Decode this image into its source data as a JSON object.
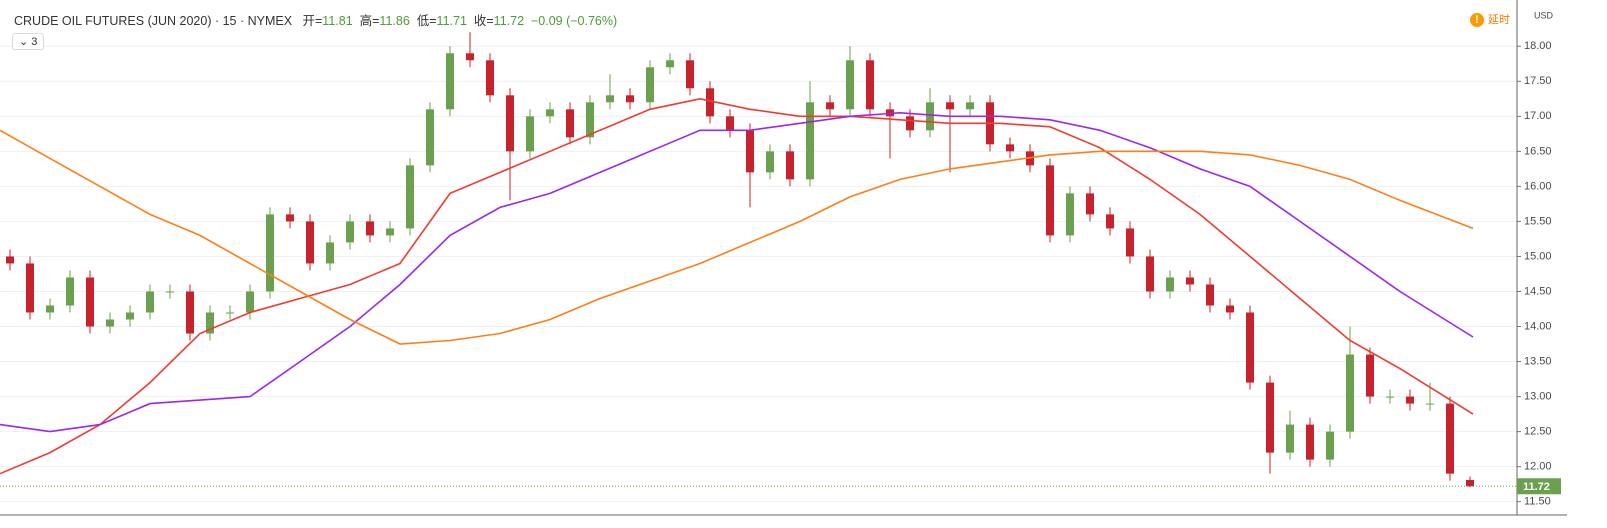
{
  "chart_data": {
    "type": "candlestick",
    "title": "CRUDE OIL FUTURES (JUN 2020) · 15 · NYMEX",
    "ohlc_labels": [
      "开=",
      "高=",
      "低=",
      "收="
    ],
    "change": "−0.09 (−0.76%)",
    "indicator_count": 3,
    "delay_label": "延时",
    "currency": "USD",
    "up_color": "#6ba04f",
    "down_color": "#c8232c",
    "xlim": [
      -0.5,
      75.35
    ],
    "ylim": [
      11.31,
      18.66
    ],
    "yticks": [
      {
        "value": 11.5,
        "label": "11.50"
      },
      {
        "value": 12,
        "label": "12.00"
      },
      {
        "value": 12.5,
        "label": "12.50"
      },
      {
        "value": 13,
        "label": "13.00"
      },
      {
        "value": 13.5,
        "label": "13.50"
      },
      {
        "value": 14,
        "label": "14.00"
      },
      {
        "value": 14.5,
        "label": "14.50"
      },
      {
        "value": 15,
        "label": "15.00"
      },
      {
        "value": 15.5,
        "label": "15.50"
      },
      {
        "value": 16,
        "label": "16.00"
      },
      {
        "value": 16.5,
        "label": "16.50"
      },
      {
        "value": 17,
        "label": "17.00"
      },
      {
        "value": 17.5,
        "label": "17.50"
      },
      {
        "value": 18,
        "label": "18.00"
      }
    ],
    "grid": true,
    "open": [
      15.0,
      14.9,
      14.2,
      14.3,
      14.7,
      14.0,
      14.1,
      14.2,
      14.5,
      14.5,
      13.9,
      14.2,
      14.2,
      14.5,
      15.6,
      15.5,
      14.9,
      15.2,
      15.5,
      15.3,
      15.4,
      16.3,
      17.1,
      17.9,
      17.8,
      17.3,
      16.5,
      17.0,
      17.1,
      16.7,
      17.2,
      17.3,
      17.2,
      17.7,
      17.8,
      17.4,
      17.0,
      16.8,
      16.2,
      16.5,
      16.1,
      17.2,
      17.1,
      17.8,
      17.1,
      17.0,
      16.8,
      17.2,
      17.1,
      17.2,
      16.6,
      16.5,
      16.3,
      15.3,
      15.9,
      15.6,
      15.4,
      15.0,
      14.5,
      14.7,
      14.6,
      14.3,
      14.2,
      13.2,
      12.2,
      12.6,
      12.1,
      12.5,
      13.6,
      13.0,
      13.0,
      12.9,
      12.9,
      11.81
    ],
    "high": [
      15.1,
      15.0,
      14.4,
      14.8,
      14.8,
      14.2,
      14.3,
      14.6,
      14.6,
      14.6,
      14.3,
      14.3,
      14.6,
      15.7,
      15.7,
      15.6,
      15.3,
      15.6,
      15.6,
      15.5,
      16.4,
      17.2,
      18.0,
      18.2,
      17.9,
      17.4,
      17.1,
      17.2,
      17.2,
      17.3,
      17.6,
      17.4,
      17.8,
      17.9,
      17.9,
      17.5,
      17.1,
      16.9,
      16.6,
      16.6,
      17.5,
      17.3,
      18.0,
      17.9,
      17.2,
      17.1,
      17.4,
      17.3,
      17.3,
      17.3,
      16.7,
      16.6,
      16.4,
      16.0,
      16.0,
      15.7,
      15.5,
      15.1,
      14.8,
      14.8,
      14.7,
      14.4,
      14.3,
      13.3,
      12.8,
      12.7,
      12.6,
      14.0,
      13.7,
      13.1,
      13.1,
      13.2,
      13.0,
      11.86
    ],
    "low": [
      14.8,
      14.1,
      14.1,
      14.2,
      13.9,
      13.9,
      14.0,
      14.1,
      14.4,
      13.8,
      13.8,
      14.1,
      14.1,
      14.4,
      15.4,
      14.8,
      14.8,
      15.1,
      15.2,
      15.2,
      15.3,
      16.2,
      17.0,
      17.7,
      17.2,
      15.8,
      16.4,
      16.9,
      16.6,
      16.6,
      17.1,
      17.1,
      17.1,
      17.6,
      17.3,
      16.9,
      16.7,
      15.7,
      16.1,
      16.0,
      16.0,
      17.0,
      17.0,
      17.0,
      16.4,
      16.7,
      16.7,
      16.2,
      17.0,
      16.5,
      16.4,
      16.2,
      15.2,
      15.2,
      15.5,
      15.3,
      14.9,
      14.4,
      14.4,
      14.5,
      14.2,
      14.1,
      13.1,
      11.9,
      12.1,
      12.0,
      12.0,
      12.4,
      12.9,
      12.9,
      12.8,
      12.8,
      11.8,
      11.71
    ],
    "close": [
      14.9,
      14.2,
      14.3,
      14.7,
      14.0,
      14.1,
      14.2,
      14.5,
      14.5,
      13.9,
      14.2,
      14.2,
      14.5,
      15.6,
      15.5,
      14.9,
      15.2,
      15.5,
      15.3,
      15.4,
      16.3,
      17.1,
      17.9,
      17.8,
      17.3,
      16.5,
      17.0,
      17.1,
      16.7,
      17.2,
      17.3,
      17.2,
      17.7,
      17.8,
      17.4,
      17.0,
      16.8,
      16.2,
      16.5,
      16.1,
      17.2,
      17.1,
      17.8,
      17.1,
      17.0,
      16.8,
      17.2,
      17.1,
      17.2,
      16.6,
      16.5,
      16.3,
      15.3,
      15.9,
      15.6,
      15.4,
      15.0,
      14.5,
      14.7,
      14.6,
      14.3,
      14.2,
      13.2,
      12.2,
      12.6,
      12.1,
      12.5,
      13.6,
      13.0,
      13.0,
      12.9,
      12.9,
      11.9,
      11.72
    ],
    "ma_x": [
      -0.5,
      2,
      4.5,
      7,
      9.5,
      12,
      14.5,
      17,
      19.5,
      22,
      24.5,
      27,
      29.5,
      32,
      34.5,
      37,
      39.5,
      42,
      44.5,
      47,
      49.5,
      52,
      54.5,
      57,
      59.5,
      62,
      64.5,
      67,
      69.5,
      73.15
    ],
    "ma_lines": [
      {
        "color": "#f23a2f",
        "values": [
          11.9,
          12.2,
          12.6,
          13.2,
          13.9,
          14.2,
          14.4,
          14.6,
          14.9,
          15.9,
          16.2,
          16.5,
          16.8,
          17.1,
          17.25,
          17.1,
          17.0,
          17.0,
          16.95,
          16.9,
          16.9,
          16.85,
          16.55,
          16.1,
          15.6,
          15.0,
          14.4,
          13.8,
          13.4,
          12.75
        ]
      },
      {
        "color": "#9c27e8",
        "values": [
          12.6,
          12.5,
          12.6,
          12.9,
          12.95,
          13.0,
          13.5,
          14.0,
          14.6,
          15.3,
          15.7,
          15.9,
          16.2,
          16.5,
          16.8,
          16.8,
          16.9,
          17.0,
          17.05,
          17.0,
          17.0,
          16.95,
          16.8,
          16.55,
          16.25,
          16.0,
          15.5,
          15.0,
          14.5,
          13.85
        ]
      },
      {
        "color": "#ff7f17",
        "values": [
          16.8,
          16.4,
          16.0,
          15.6,
          15.3,
          14.9,
          14.5,
          14.1,
          13.75,
          13.8,
          13.9,
          14.1,
          14.4,
          14.65,
          14.9,
          15.2,
          15.5,
          15.85,
          16.1,
          16.25,
          16.35,
          16.45,
          16.5,
          16.5,
          16.5,
          16.45,
          16.3,
          16.1,
          15.8,
          15.4
        ]
      }
    ]
  }
}
